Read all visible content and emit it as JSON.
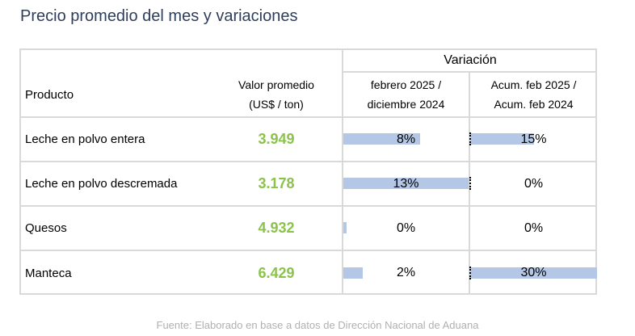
{
  "title": "Precio promedio del mes y variaciones",
  "header": {
    "variacion": "Variación",
    "producto": "Producto",
    "valor_line1": "Valor promedio",
    "valor_line2": "(US$ / ton)",
    "col1_line1": "febrero 2025 /",
    "col1_line2": "diciembre 2024",
    "col2_line1": "Acum. feb 2025 /",
    "col2_line2": "Acum. feb 2024"
  },
  "rows": [
    {
      "product": "Leche en polvo entera",
      "value": "3.949",
      "var_month": "8%",
      "var_month_num": 8,
      "var_acum": "15%",
      "var_acum_num": 15
    },
    {
      "product": "Leche en polvo descremada",
      "value": "3.178",
      "var_month": "13%",
      "var_month_num": 13,
      "var_acum": "0%",
      "var_acum_num": 0
    },
    {
      "product": "Quesos",
      "value": "4.932",
      "var_month": "0%",
      "var_month_num": 0,
      "var_acum": "0%",
      "var_acum_num": 0
    },
    {
      "product": "Manteca",
      "value": "6.429",
      "var_month": "2%",
      "var_month_num": 2,
      "var_acum": "30%",
      "var_acum_num": 30
    }
  ],
  "colors": {
    "title": "#2f3e5a",
    "value": "#8bc34a",
    "bar": "#b4c7e7",
    "border": "#d9d9d9"
  },
  "source": "Fuente: Elaborado en base a datos de Dirección Nacional de Aduana"
}
